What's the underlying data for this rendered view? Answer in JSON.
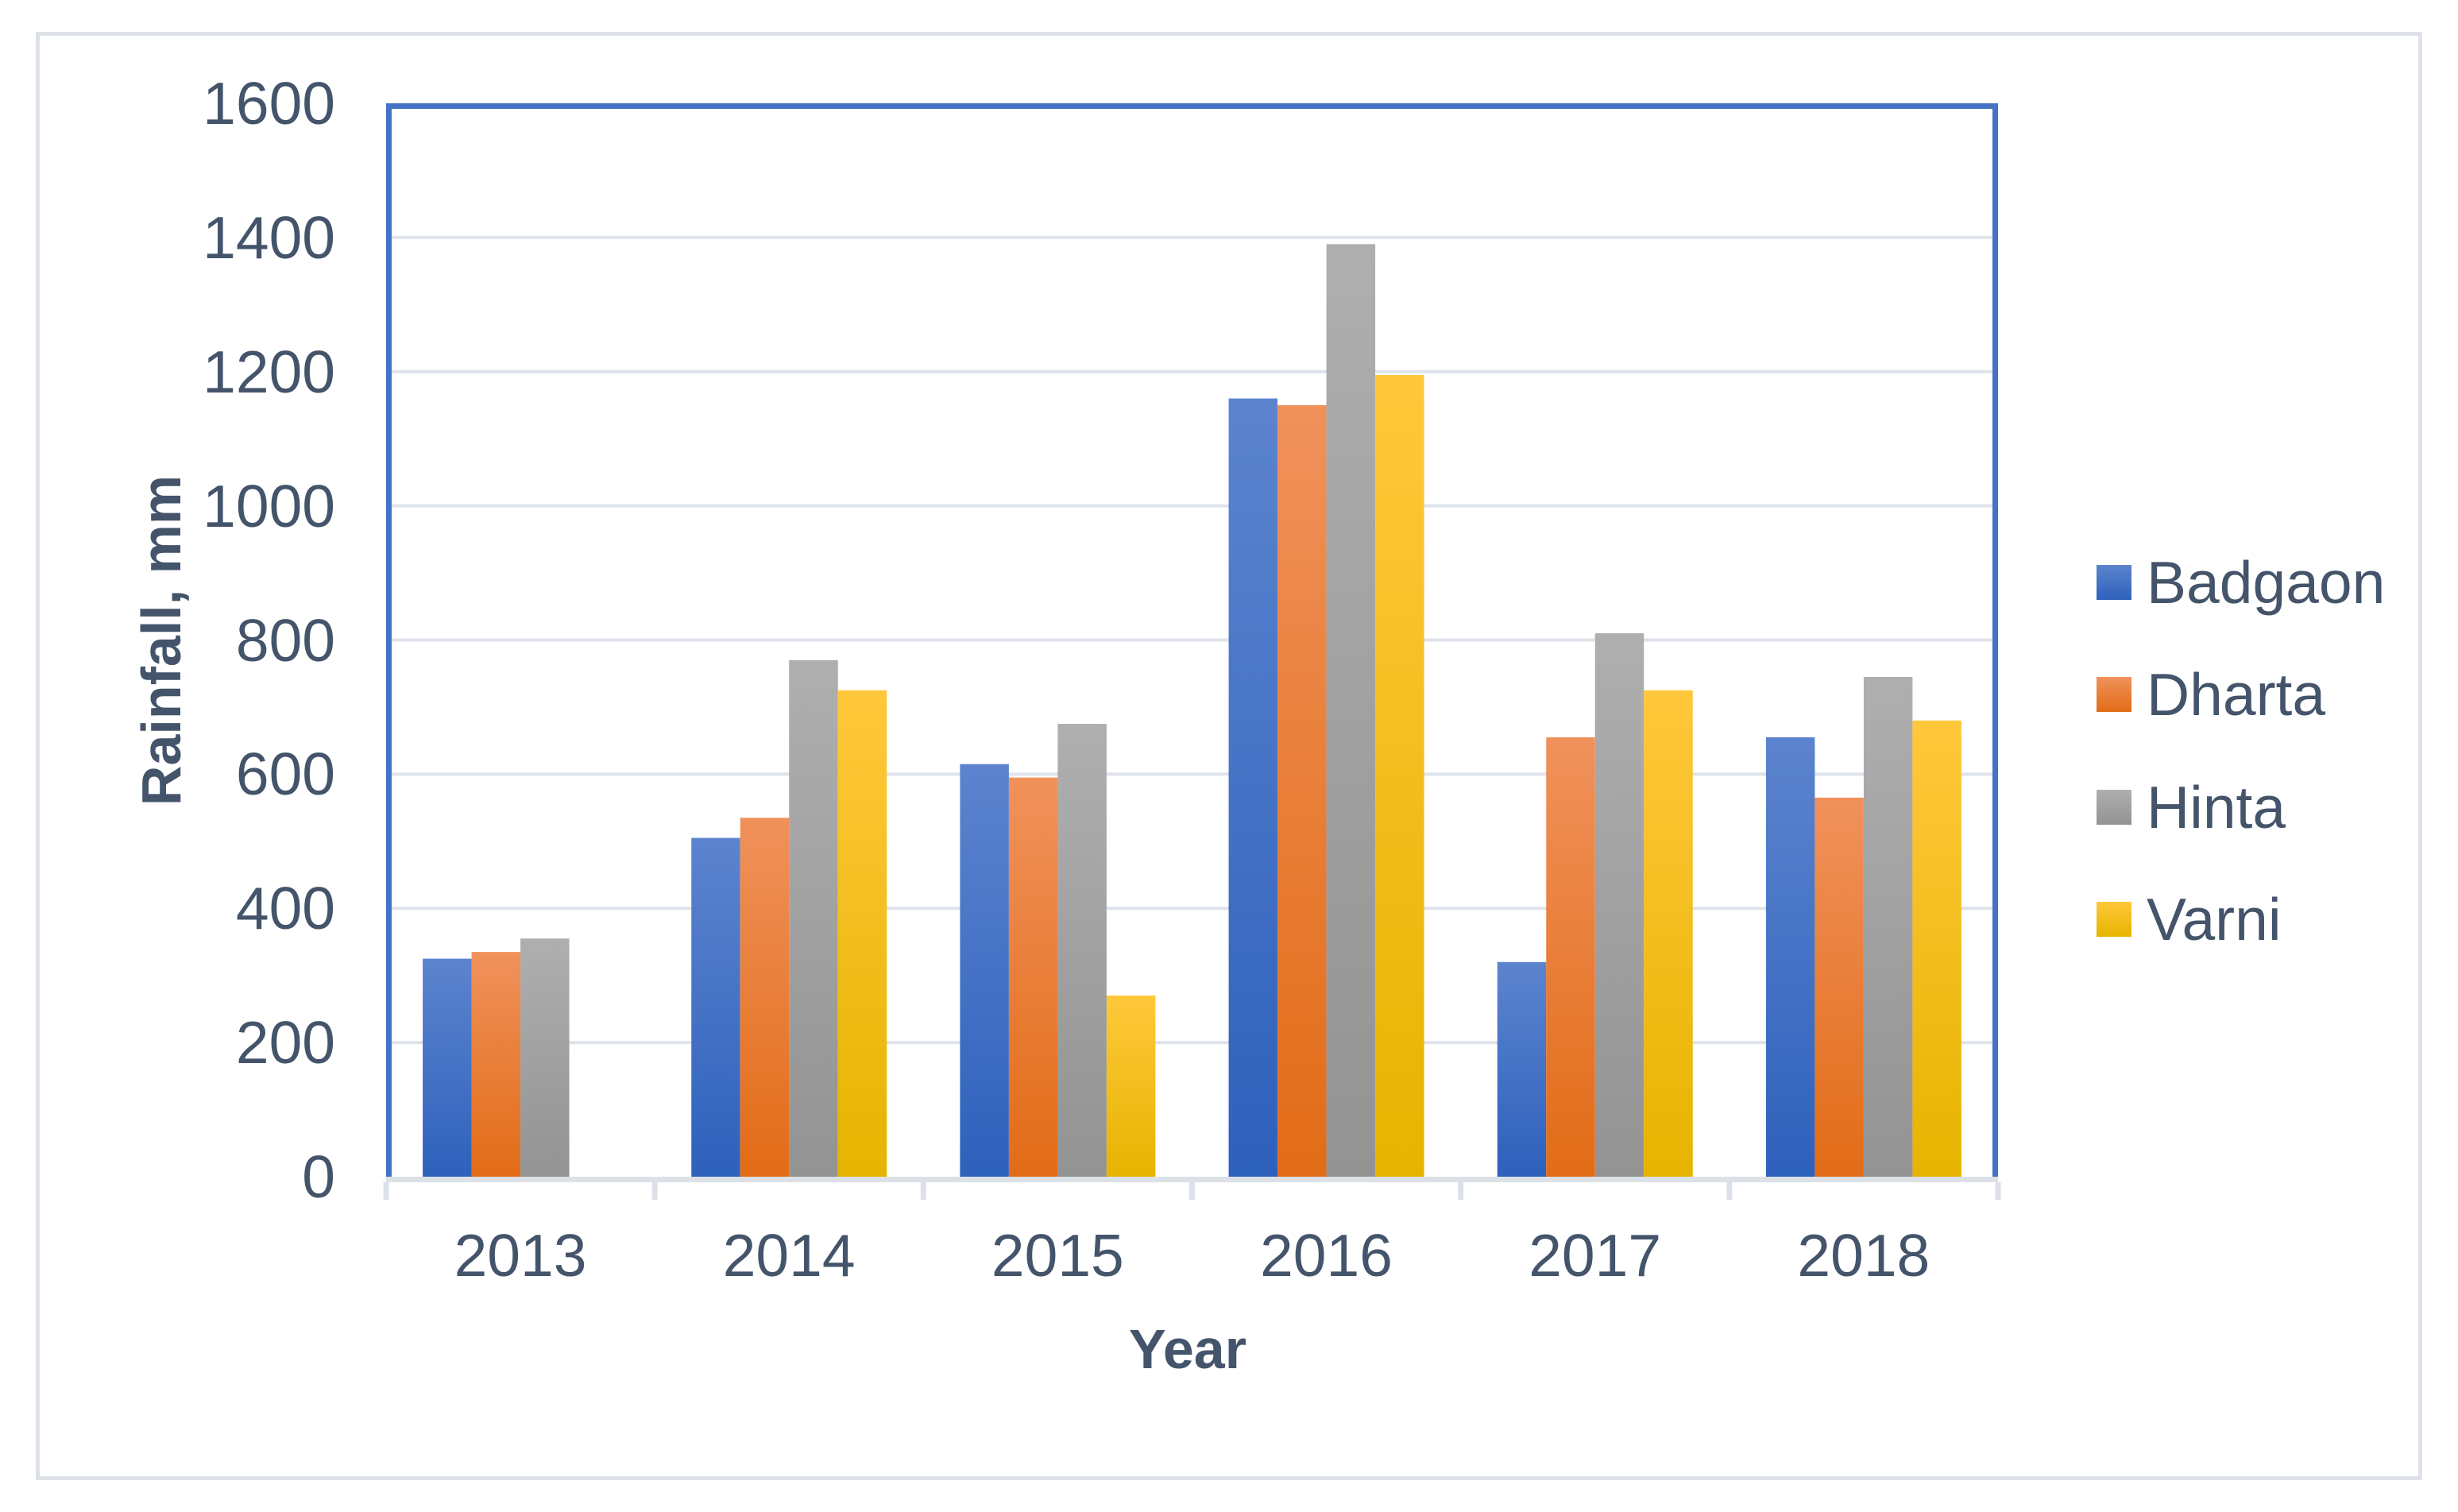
{
  "chart_data": {
    "type": "bar",
    "title": "",
    "xlabel": "Year",
    "ylabel": "Rainfall, mm",
    "categories": [
      "2013",
      "2014",
      "2015",
      "2016",
      "2017",
      "2018"
    ],
    "series": [
      {
        "name": "Badgaon",
        "color": "#4472C4",
        "gradient": [
          "#5C84CE",
          "#2E61BC"
        ],
        "values": [
          325,
          505,
          615,
          1160,
          320,
          655
        ]
      },
      {
        "name": "Dharta",
        "color": "#ED7D31",
        "gradient": [
          "#F0915B",
          "#E26C17"
        ],
        "values": [
          335,
          535,
          595,
          1150,
          655,
          565
        ]
      },
      {
        "name": "Hinta",
        "color": "#A5A5A5",
        "gradient": [
          "#AFAFAF",
          "#939393"
        ],
        "values": [
          355,
          770,
          675,
          1390,
          810,
          745
        ]
      },
      {
        "name": "Varni",
        "color": "#FFC000",
        "gradient": [
          "#FFC83B",
          "#E6B400"
        ],
        "values": [
          0,
          725,
          270,
          1195,
          725,
          680
        ]
      }
    ],
    "ylim": [
      0,
      1600
    ],
    "ytick_step": 200,
    "grid": true,
    "legend_position": "right-middle",
    "colors": {
      "text": "#44546A",
      "plot_frame": "#4472C4",
      "gridline": "#DDE2EB",
      "axis_line": "#DCE1E8",
      "outer_border": "#DEE2E8",
      "background": "#FFFFFF"
    }
  }
}
